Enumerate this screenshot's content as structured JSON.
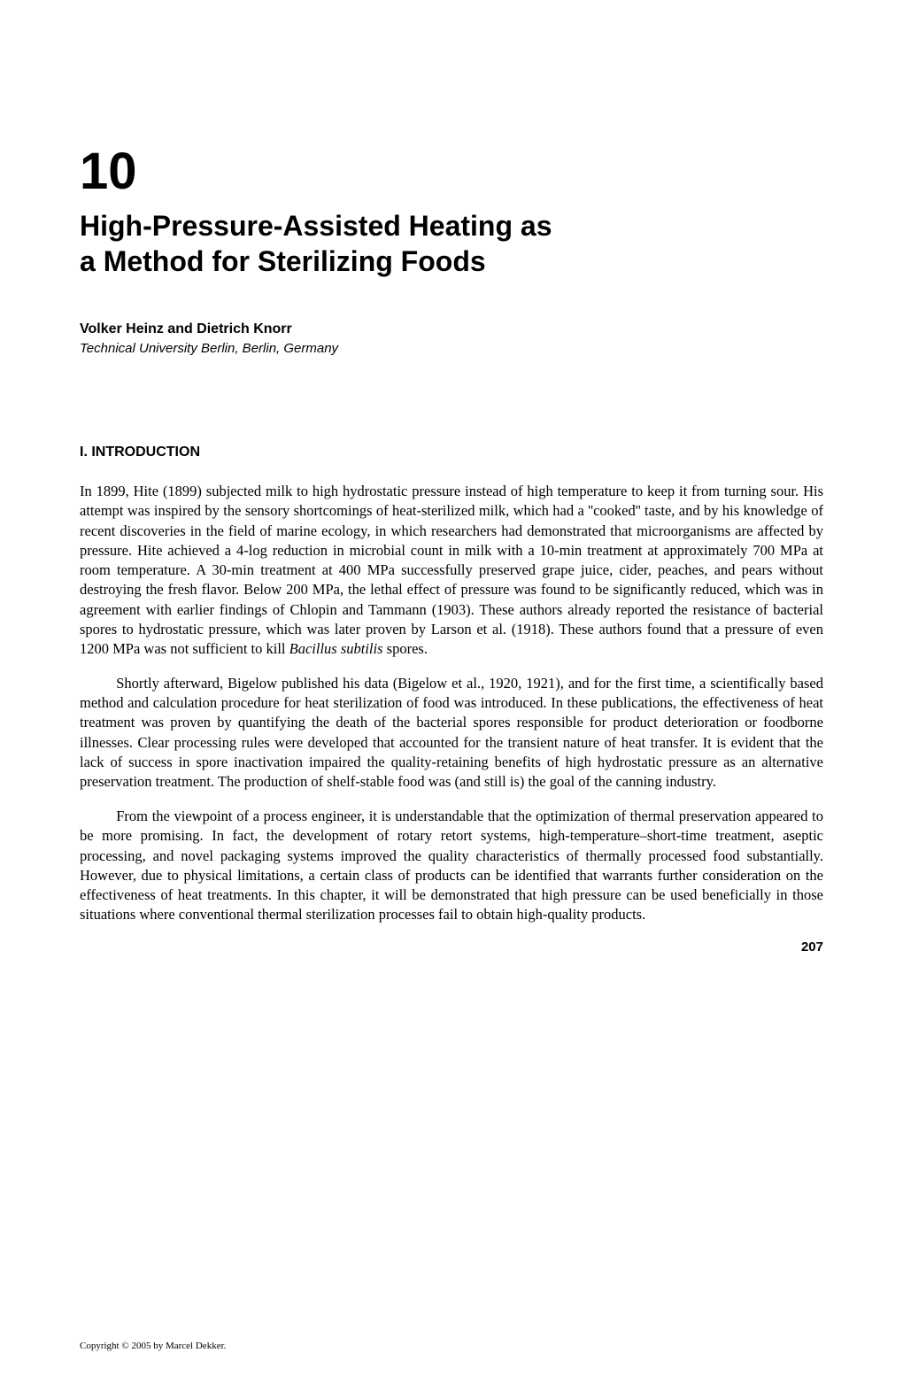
{
  "chapter": {
    "number": "10",
    "title_line1": "High-Pressure-Assisted Heating as",
    "title_line2": "a Method for Sterilizing Foods"
  },
  "authors": "Volker Heinz and Dietrich Knorr",
  "affiliation": "Technical University Berlin, Berlin, Germany",
  "section": {
    "heading": "I.  INTRODUCTION"
  },
  "paragraphs": {
    "p1_part1": "In 1899, Hite (1899) subjected milk to high hydrostatic pressure instead of high temperature to keep it from turning sour. His attempt was inspired by the sensory shortcomings of heat-sterilized milk, which had a ''cooked'' taste, and by his knowledge of recent discoveries in the field of marine ecology, in which researchers had demonstrated that microorganisms are affected by pressure. Hite achieved a 4-log reduction in microbial count in milk with a 10-min treatment at approximately 700 MPa at room temperature. A 30-min treatment at 400 MPa successfully preserved grape juice, cider, peaches, and pears without destroying the fresh flavor. Below 200 MPa, the lethal effect of pressure was found to be significantly reduced, which was in agreement with earlier findings of Chlopin and Tammann (1903). These authors already reported the resistance of bacterial spores to hydrostatic pressure, which was later proven by Larson et al. (1918). These authors found that a pressure of even 1200 MPa was not sufficient to kill ",
    "p1_italic": "Bacillus subtilis",
    "p1_part2": " spores.",
    "p2": "Shortly afterward, Bigelow published his data (Bigelow et al., 1920, 1921), and for the first time, a scientifically based method and calculation procedure for heat sterilization of food was introduced. In these publications, the effectiveness of heat treatment was proven by quantifying the death of the bacterial spores responsible for product deterioration or foodborne illnesses. Clear processing rules were developed that accounted for the transient nature of heat transfer. It is evident that the lack of success in spore inactivation impaired the quality-retaining benefits of high hydrostatic pressure as an alternative preservation treatment. The production of shelf-stable food was (and still is) the goal of the canning industry.",
    "p3": "From the viewpoint of a process engineer, it is understandable that the optimization of thermal preservation appeared to be more promising. In fact, the development of rotary retort systems, high-temperature–short-time treatment, aseptic processing, and novel packaging systems improved the quality characteristics of thermally processed food substantially. However, due to physical limitations, a certain class of products can be identified that warrants further consideration on the effectiveness of heat treatments. In this chapter, it will be demonstrated that high pressure can be used beneficially in those situations where conventional thermal sterilization processes fail to obtain high-quality products."
  },
  "page_number": "207",
  "copyright": "Copyright © 2005 by Marcel Dekker."
}
